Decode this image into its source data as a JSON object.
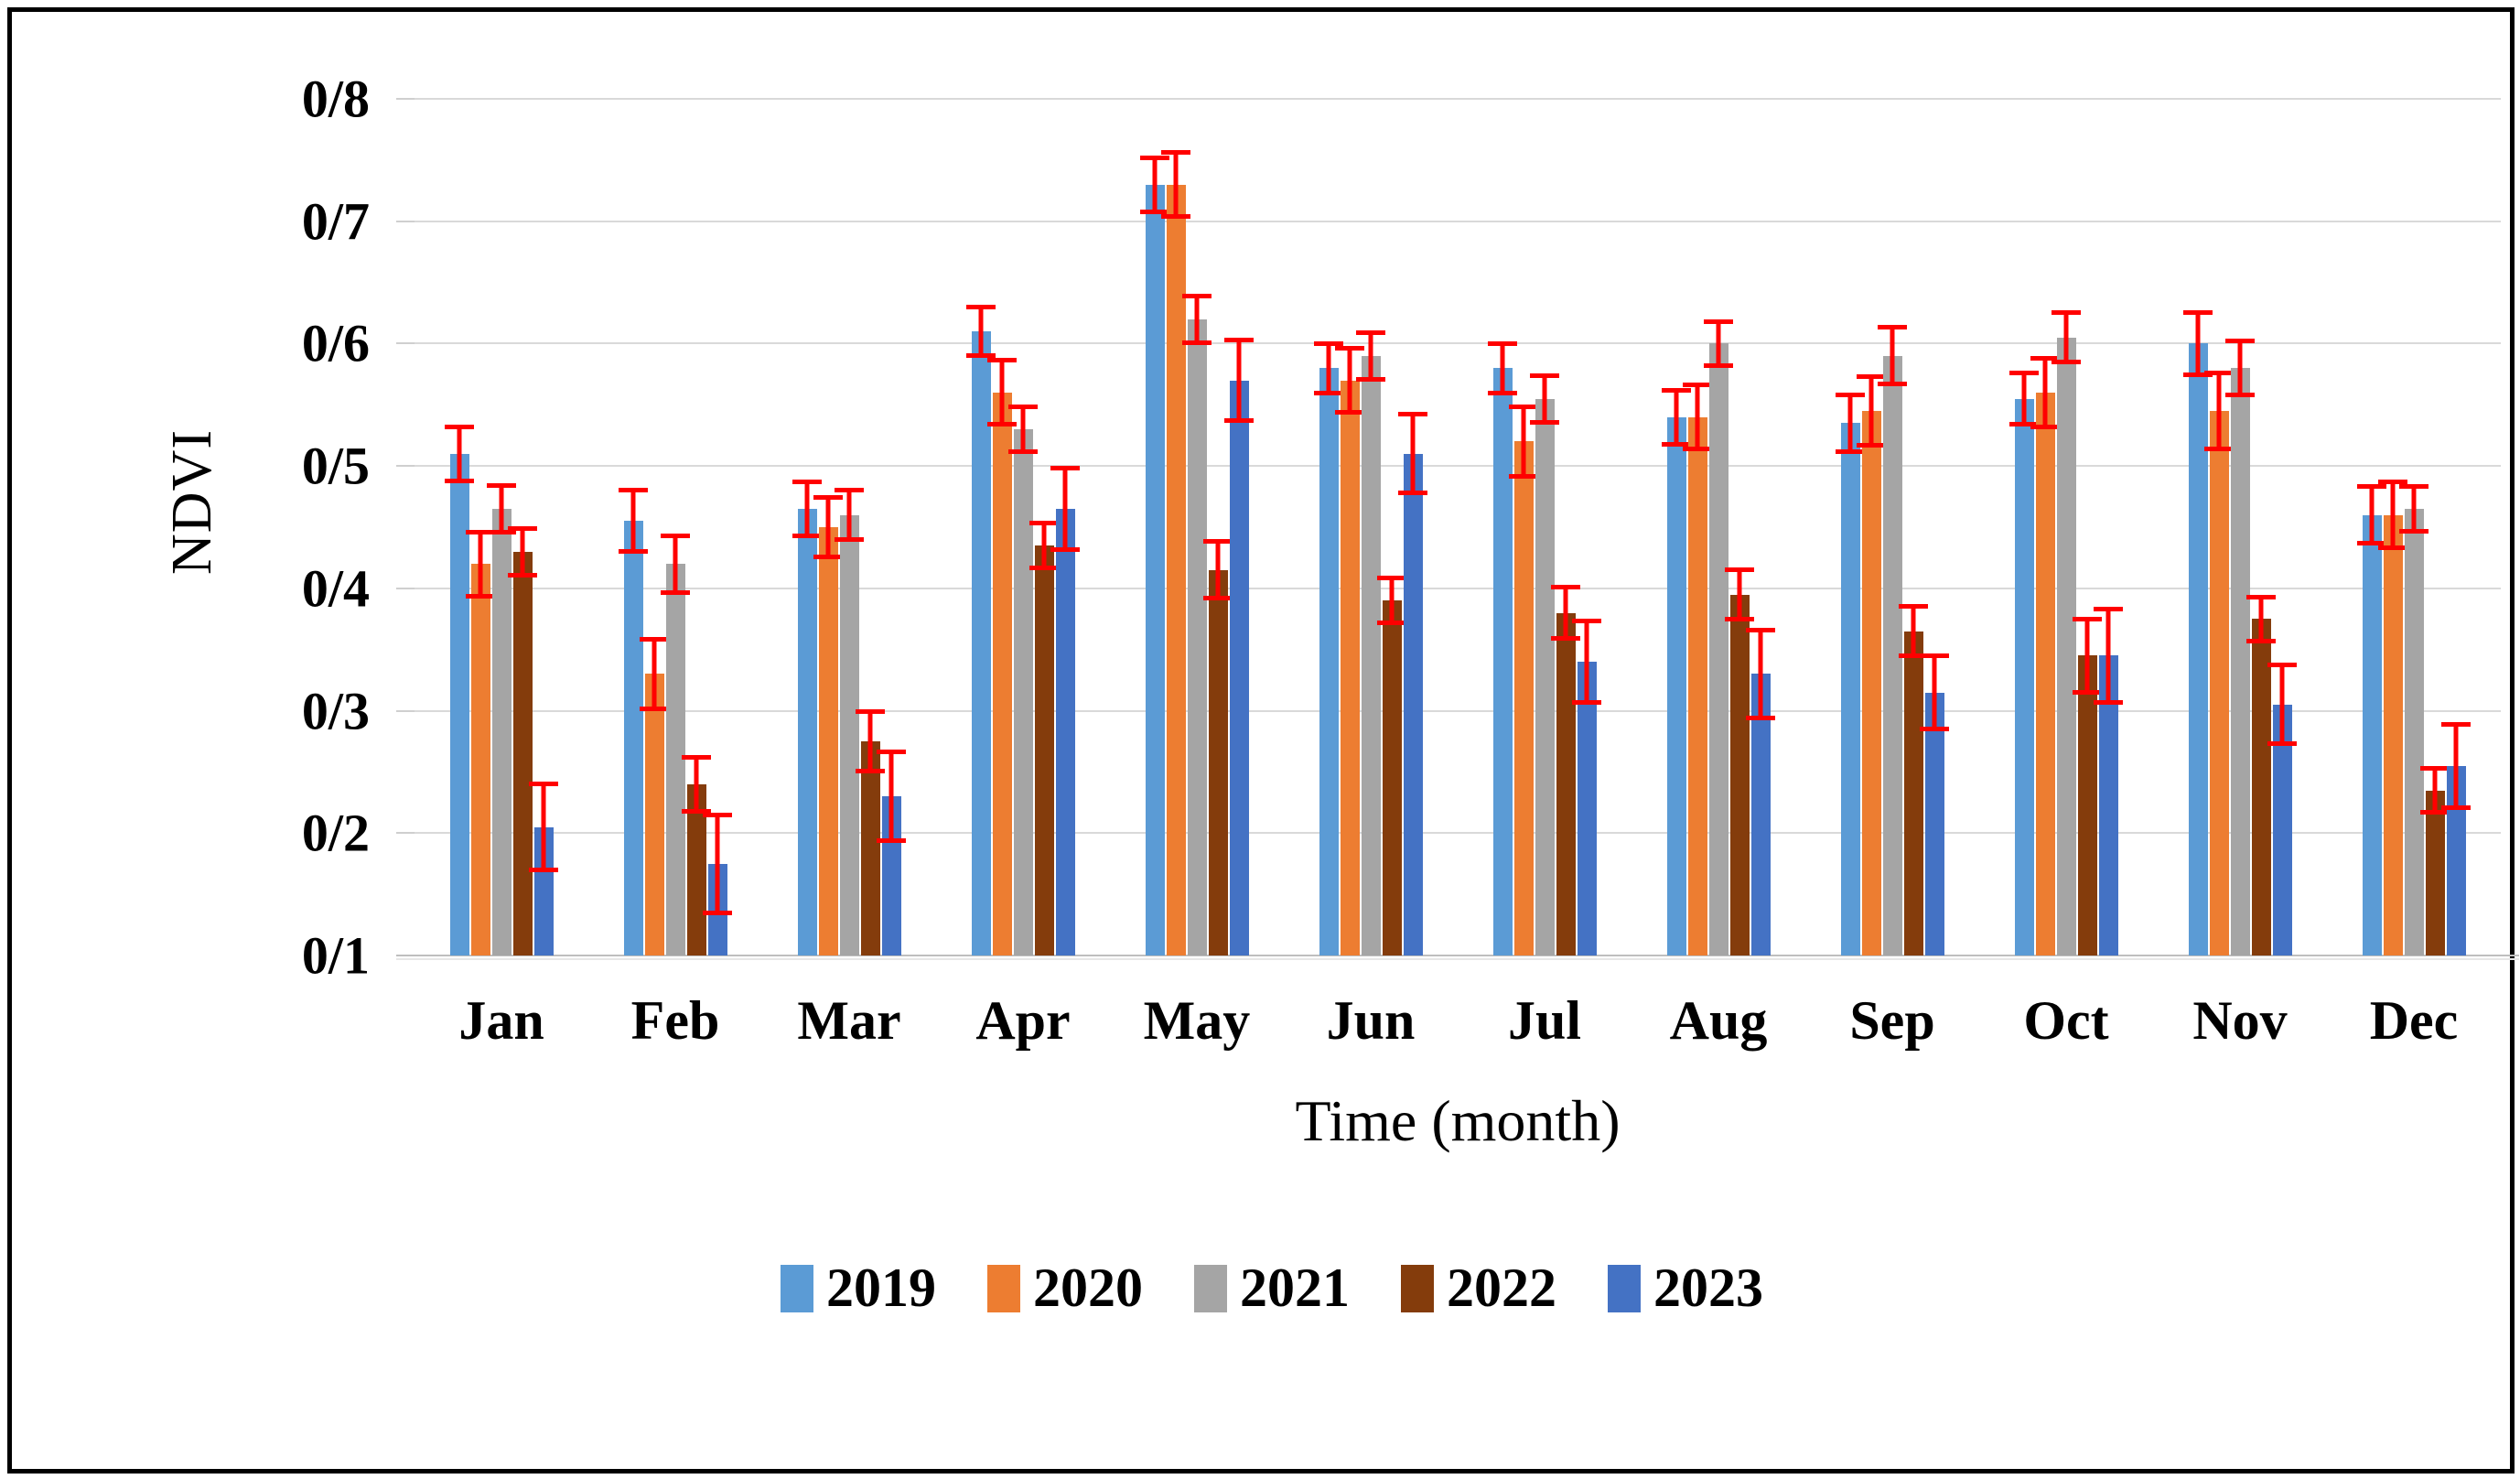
{
  "figure": {
    "y_axis_title": "NDVI",
    "x_axis_title": "Time (month)",
    "background_color": "#ffffff",
    "border_color": "#000000",
    "gridline_color": "#d9d9d9",
    "error_bar_color": "#ff0000"
  },
  "chart_data": {
    "type": "bar",
    "title": "",
    "xlabel": "Time (month)",
    "ylabel": "NDVI",
    "grid": true,
    "legend_position": "bottom",
    "categories": [
      "Jan",
      "Feb",
      "Mar",
      "Apr",
      "May",
      "Jun",
      "Jul",
      "Aug",
      "Sep",
      "Oct",
      "Nov",
      "Dec"
    ],
    "y_axis": {
      "min": 0.1,
      "max": 0.8,
      "tick_step": 0.1,
      "tick_labels_bottom_to_top": [
        "0/1",
        "0/2",
        "0/3",
        "0/4",
        "0/5",
        "0/6",
        "0/7",
        "0/8"
      ],
      "note": "Ticks use Persian-style decimal separator: 0/1 means 0.1. Bars rise from the 0/1 baseline."
    },
    "series": [
      {
        "name": "2019",
        "color": "#5B9BD5",
        "values": [
          0.51,
          0.455,
          0.465,
          0.61,
          0.73,
          0.58,
          0.58,
          0.54,
          0.535,
          0.555,
          0.6,
          0.46
        ],
        "errors": [
          0.024,
          0.027,
          0.024,
          0.022,
          0.024,
          0.022,
          0.022,
          0.024,
          0.025,
          0.023,
          0.027,
          0.025
        ]
      },
      {
        "name": "2020",
        "color": "#ED7D31",
        "values": [
          0.42,
          0.33,
          0.45,
          0.56,
          0.73,
          0.57,
          0.52,
          0.54,
          0.545,
          0.56,
          0.545,
          0.46
        ],
        "errors": [
          0.028,
          0.03,
          0.026,
          0.028,
          0.028,
          0.028,
          0.03,
          0.028,
          0.03,
          0.03,
          0.033,
          0.029
        ]
      },
      {
        "name": "2021",
        "color": "#A5A5A5",
        "values": [
          0.465,
          0.42,
          0.46,
          0.53,
          0.62,
          0.59,
          0.555,
          0.6,
          0.59,
          0.605,
          0.58,
          0.465
        ],
        "errors": [
          0.021,
          0.025,
          0.022,
          0.02,
          0.021,
          0.021,
          0.021,
          0.02,
          0.025,
          0.022,
          0.024,
          0.02
        ]
      },
      {
        "name": "2022",
        "color": "#843C0C",
        "values": [
          0.43,
          0.24,
          0.275,
          0.435,
          0.415,
          0.39,
          0.38,
          0.395,
          0.365,
          0.345,
          0.375,
          0.235
        ],
        "errors": [
          0.021,
          0.024,
          0.026,
          0.02,
          0.025,
          0.02,
          0.023,
          0.022,
          0.022,
          0.032,
          0.02,
          0.02
        ]
      },
      {
        "name": "2023",
        "color": "#4472C4",
        "values": [
          0.205,
          0.175,
          0.23,
          0.465,
          0.57,
          0.51,
          0.34,
          0.33,
          0.315,
          0.345,
          0.305,
          0.255
        ],
        "errors": [
          0.037,
          0.042,
          0.038,
          0.035,
          0.035,
          0.034,
          0.035,
          0.038,
          0.032,
          0.04,
          0.034,
          0.036
        ]
      }
    ],
    "error_bars": true,
    "error_bar_color": "#ff0000"
  }
}
